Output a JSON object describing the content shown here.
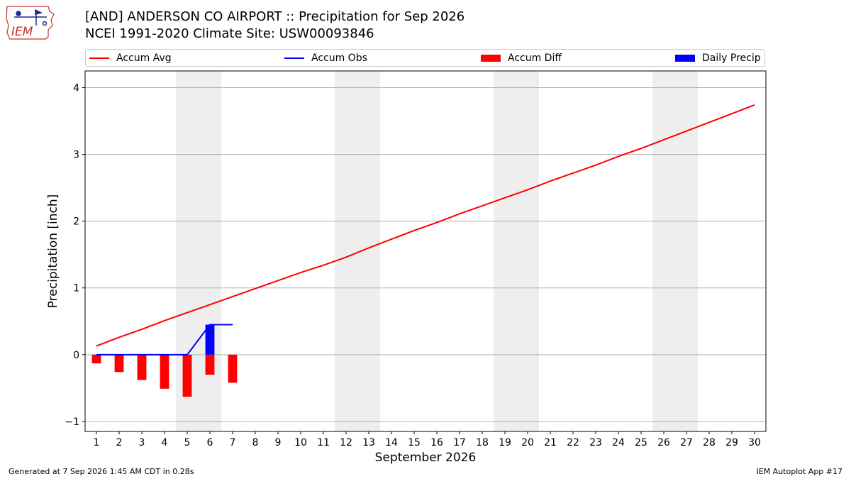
{
  "logo": {
    "text": "IEM"
  },
  "header": {
    "title_line1": "[AND] ANDERSON CO AIRPORT :: Precipitation for Sep 2026",
    "title_line2": "NCEI 1991-2020 Climate Site: USW00093846"
  },
  "footer": {
    "left": "Generated at 7 Sep 2026 1:45 AM CDT in 0.28s",
    "right": "IEM Autoplot App #17"
  },
  "colors": {
    "accum_avg": "#ff0000",
    "accum_obs": "#0000ff",
    "accum_diff": "#ff0000",
    "daily_precip": "#0000ff",
    "weekend_shade": "#eeeeee",
    "grid": "#b0b0b0"
  },
  "chart_data": {
    "type": "line",
    "xlabel": "September 2026",
    "ylabel": "Precipitation [inch]",
    "ylim": [
      -1.15,
      4.25
    ],
    "xlim": [
      0.5,
      30.5
    ],
    "yticks": [
      -1,
      0,
      1,
      2,
      3,
      4
    ],
    "xticks": [
      1,
      2,
      3,
      4,
      5,
      6,
      7,
      8,
      9,
      10,
      11,
      12,
      13,
      14,
      15,
      16,
      17,
      18,
      19,
      20,
      21,
      22,
      23,
      24,
      25,
      26,
      27,
      28,
      29,
      30
    ],
    "grid": "horizontal",
    "legend_position": "top",
    "weekend_shading": [
      [
        4.5,
        6.5
      ],
      [
        11.5,
        13.5
      ],
      [
        18.5,
        20.5
      ],
      [
        25.5,
        27.5
      ]
    ],
    "legend": [
      {
        "label": "Accum Avg",
        "kind": "line",
        "color": "#ff0000"
      },
      {
        "label": "Accum Obs",
        "kind": "line",
        "color": "#0000ff"
      },
      {
        "label": "Accum Diff",
        "kind": "bar",
        "color": "#ff0000"
      },
      {
        "label": "Daily Precip",
        "kind": "bar",
        "color": "#0000ff"
      }
    ],
    "series": [
      {
        "name": "Accum Avg",
        "kind": "line",
        "x": [
          1,
          2,
          3,
          4,
          5,
          6,
          7,
          8,
          9,
          10,
          11,
          12,
          13,
          14,
          15,
          16,
          17,
          18,
          19,
          20,
          21,
          22,
          23,
          24,
          25,
          26,
          27,
          28,
          29,
          30
        ],
        "values": [
          0.13,
          0.26,
          0.38,
          0.51,
          0.63,
          0.75,
          0.87,
          0.99,
          1.11,
          1.23,
          1.34,
          1.46,
          1.6,
          1.73,
          1.86,
          1.98,
          2.11,
          2.23,
          2.35,
          2.47,
          2.6,
          2.72,
          2.84,
          2.97,
          3.09,
          3.22,
          3.35,
          3.48,
          3.61,
          3.74
        ]
      },
      {
        "name": "Accum Obs",
        "kind": "line",
        "x": [
          1,
          2,
          3,
          4,
          5,
          6,
          7
        ],
        "values": [
          0,
          0,
          0,
          0,
          0,
          0.45,
          0.45
        ]
      },
      {
        "name": "Accum Diff",
        "kind": "bar",
        "x": [
          1,
          2,
          3,
          4,
          5,
          6,
          7
        ],
        "values": [
          -0.13,
          -0.26,
          -0.38,
          -0.51,
          -0.63,
          -0.3,
          -0.42
        ]
      },
      {
        "name": "Daily Precip",
        "kind": "bar",
        "x": [
          1,
          2,
          3,
          4,
          5,
          6,
          7
        ],
        "values": [
          0,
          0,
          0,
          0,
          0,
          0.45,
          0
        ]
      }
    ]
  }
}
